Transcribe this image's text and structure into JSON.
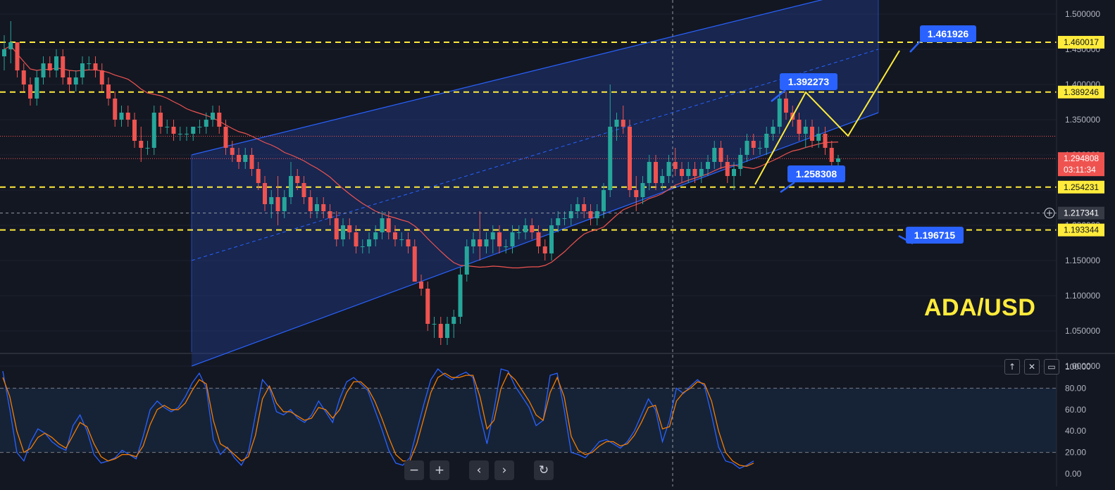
{
  "symbol": "ADA/USD",
  "colors": {
    "background": "#131722",
    "bull": "#26a69a",
    "bear": "#ef5350",
    "channel_line": "#2962ff",
    "channel_fill": "#1e3a8a",
    "level": "#ffeb3b",
    "ma": "#ef5350",
    "stoch_k": "#2962ff",
    "stoch_d": "#f57c00",
    "callout": "#2962ff"
  },
  "price_axis": {
    "ticks": [
      "1.500000",
      "1.450000",
      "1.400000",
      "1.350000",
      "1.300000",
      "1.250000",
      "1.200000",
      "1.150000",
      "1.100000",
      "1.050000",
      "1.000000"
    ],
    "last_price": "1.294808",
    "countdown": "03:11:34",
    "crosshair_price": "1.217341"
  },
  "levels": [
    {
      "value": 1.460017,
      "label": "1.460017"
    },
    {
      "value": 1.389246,
      "label": "1.389246"
    },
    {
      "value": 1.254231,
      "label": "1.254231"
    },
    {
      "value": 1.193344,
      "label": "1.193344"
    }
  ],
  "callouts": [
    {
      "label": "1.461926"
    },
    {
      "label": "1.392273"
    },
    {
      "label": "1.258308"
    },
    {
      "label": "1.196715"
    }
  ],
  "chart_data": {
    "type": "candlestick",
    "title": "ADA/USD",
    "ylim": [
      1.02,
      1.52
    ],
    "candles_ohlc": [
      [
        1.44,
        1.47,
        1.42,
        1.45
      ],
      [
        1.45,
        1.49,
        1.43,
        1.46
      ],
      [
        1.46,
        1.46,
        1.41,
        1.42
      ],
      [
        1.42,
        1.43,
        1.39,
        1.4
      ],
      [
        1.4,
        1.41,
        1.37,
        1.38
      ],
      [
        1.38,
        1.42,
        1.37,
        1.41
      ],
      [
        1.41,
        1.44,
        1.4,
        1.43
      ],
      [
        1.43,
        1.44,
        1.41,
        1.42
      ],
      [
        1.42,
        1.45,
        1.41,
        1.44
      ],
      [
        1.44,
        1.45,
        1.4,
        1.41
      ],
      [
        1.41,
        1.42,
        1.39,
        1.4
      ],
      [
        1.4,
        1.42,
        1.39,
        1.41
      ],
      [
        1.41,
        1.44,
        1.4,
        1.43
      ],
      [
        1.43,
        1.44,
        1.42,
        1.43
      ],
      [
        1.43,
        1.44,
        1.41,
        1.42
      ],
      [
        1.42,
        1.43,
        1.39,
        1.4
      ],
      [
        1.4,
        1.41,
        1.37,
        1.38
      ],
      [
        1.38,
        1.39,
        1.34,
        1.35
      ],
      [
        1.35,
        1.37,
        1.34,
        1.36
      ],
      [
        1.36,
        1.37,
        1.34,
        1.35
      ],
      [
        1.35,
        1.36,
        1.31,
        1.32
      ],
      [
        1.32,
        1.34,
        1.29,
        1.31
      ],
      [
        1.31,
        1.32,
        1.3,
        1.31
      ],
      [
        1.31,
        1.37,
        1.3,
        1.36
      ],
      [
        1.36,
        1.37,
        1.33,
        1.34
      ],
      [
        1.34,
        1.35,
        1.33,
        1.34
      ],
      [
        1.34,
        1.35,
        1.32,
        1.33
      ],
      [
        1.33,
        1.34,
        1.32,
        1.33
      ],
      [
        1.33,
        1.34,
        1.32,
        1.33
      ],
      [
        1.33,
        1.34,
        1.32,
        1.34
      ],
      [
        1.34,
        1.35,
        1.33,
        1.34
      ],
      [
        1.34,
        1.36,
        1.33,
        1.35
      ],
      [
        1.35,
        1.37,
        1.34,
        1.36
      ],
      [
        1.36,
        1.37,
        1.33,
        1.34
      ],
      [
        1.34,
        1.35,
        1.3,
        1.31
      ],
      [
        1.31,
        1.32,
        1.29,
        1.3
      ],
      [
        1.3,
        1.31,
        1.28,
        1.29
      ],
      [
        1.29,
        1.31,
        1.28,
        1.3
      ],
      [
        1.3,
        1.31,
        1.27,
        1.28
      ],
      [
        1.28,
        1.29,
        1.25,
        1.26
      ],
      [
        1.26,
        1.27,
        1.22,
        1.23
      ],
      [
        1.23,
        1.25,
        1.21,
        1.24
      ],
      [
        1.24,
        1.27,
        1.2,
        1.22
      ],
      [
        1.22,
        1.25,
        1.21,
        1.24
      ],
      [
        1.24,
        1.29,
        1.23,
        1.27
      ],
      [
        1.27,
        1.28,
        1.25,
        1.26
      ],
      [
        1.26,
        1.27,
        1.23,
        1.24
      ],
      [
        1.24,
        1.25,
        1.21,
        1.22
      ],
      [
        1.22,
        1.24,
        1.21,
        1.23
      ],
      [
        1.23,
        1.24,
        1.21,
        1.22
      ],
      [
        1.22,
        1.23,
        1.2,
        1.21
      ],
      [
        1.21,
        1.22,
        1.17,
        1.18
      ],
      [
        1.18,
        1.21,
        1.17,
        1.2
      ],
      [
        1.2,
        1.21,
        1.18,
        1.19
      ],
      [
        1.19,
        1.2,
        1.16,
        1.17
      ],
      [
        1.17,
        1.18,
        1.16,
        1.17
      ],
      [
        1.17,
        1.19,
        1.16,
        1.18
      ],
      [
        1.18,
        1.2,
        1.17,
        1.19
      ],
      [
        1.19,
        1.22,
        1.18,
        1.21
      ],
      [
        1.21,
        1.22,
        1.18,
        1.19
      ],
      [
        1.19,
        1.2,
        1.17,
        1.18
      ],
      [
        1.18,
        1.19,
        1.17,
        1.18
      ],
      [
        1.18,
        1.19,
        1.16,
        1.17
      ],
      [
        1.17,
        1.18,
        1.14,
        1.12
      ],
      [
        1.12,
        1.13,
        1.1,
        1.11
      ],
      [
        1.11,
        1.12,
        1.05,
        1.06
      ],
      [
        1.06,
        1.07,
        1.04,
        1.06
      ],
      [
        1.06,
        1.07,
        1.03,
        1.04
      ],
      [
        1.04,
        1.07,
        1.03,
        1.06
      ],
      [
        1.06,
        1.08,
        1.04,
        1.07
      ],
      [
        1.07,
        1.14,
        1.06,
        1.13
      ],
      [
        1.13,
        1.18,
        1.12,
        1.17
      ],
      [
        1.17,
        1.19,
        1.16,
        1.18
      ],
      [
        1.18,
        1.22,
        1.15,
        1.17
      ],
      [
        1.17,
        1.19,
        1.16,
        1.18
      ],
      [
        1.18,
        1.2,
        1.16,
        1.19
      ],
      [
        1.19,
        1.2,
        1.16,
        1.17
      ],
      [
        1.17,
        1.18,
        1.16,
        1.17
      ],
      [
        1.17,
        1.2,
        1.16,
        1.19
      ],
      [
        1.19,
        1.2,
        1.18,
        1.19
      ],
      [
        1.19,
        1.21,
        1.18,
        1.2
      ],
      [
        1.2,
        1.21,
        1.18,
        1.19
      ],
      [
        1.19,
        1.2,
        1.16,
        1.17
      ],
      [
        1.17,
        1.18,
        1.15,
        1.16
      ],
      [
        1.16,
        1.21,
        1.15,
        1.2
      ],
      [
        1.2,
        1.22,
        1.19,
        1.21
      ],
      [
        1.21,
        1.22,
        1.2,
        1.21
      ],
      [
        1.21,
        1.23,
        1.2,
        1.22
      ],
      [
        1.22,
        1.24,
        1.21,
        1.23
      ],
      [
        1.23,
        1.24,
        1.21,
        1.22
      ],
      [
        1.22,
        1.23,
        1.2,
        1.21
      ],
      [
        1.21,
        1.23,
        1.2,
        1.22
      ],
      [
        1.22,
        1.26,
        1.21,
        1.25
      ],
      [
        1.25,
        1.4,
        1.24,
        1.34
      ],
      [
        1.34,
        1.36,
        1.32,
        1.35
      ],
      [
        1.35,
        1.37,
        1.33,
        1.34
      ],
      [
        1.34,
        1.35,
        1.24,
        1.25
      ],
      [
        1.25,
        1.27,
        1.22,
        1.24
      ],
      [
        1.24,
        1.27,
        1.23,
        1.26
      ],
      [
        1.26,
        1.3,
        1.25,
        1.29
      ],
      [
        1.29,
        1.3,
        1.25,
        1.26
      ],
      [
        1.26,
        1.28,
        1.25,
        1.27
      ],
      [
        1.27,
        1.3,
        1.26,
        1.29
      ],
      [
        1.29,
        1.31,
        1.27,
        1.28
      ],
      [
        1.28,
        1.29,
        1.26,
        1.27
      ],
      [
        1.27,
        1.29,
        1.26,
        1.28
      ],
      [
        1.28,
        1.29,
        1.26,
        1.27
      ],
      [
        1.27,
        1.29,
        1.26,
        1.28
      ],
      [
        1.28,
        1.3,
        1.27,
        1.29
      ],
      [
        1.29,
        1.32,
        1.28,
        1.31
      ],
      [
        1.31,
        1.32,
        1.28,
        1.29
      ],
      [
        1.29,
        1.3,
        1.26,
        1.27
      ],
      [
        1.27,
        1.29,
        1.25,
        1.28
      ],
      [
        1.28,
        1.31,
        1.27,
        1.3
      ],
      [
        1.3,
        1.33,
        1.29,
        1.32
      ],
      [
        1.32,
        1.33,
        1.3,
        1.31
      ],
      [
        1.31,
        1.32,
        1.3,
        1.31
      ],
      [
        1.31,
        1.34,
        1.3,
        1.33
      ],
      [
        1.33,
        1.35,
        1.32,
        1.34
      ],
      [
        1.34,
        1.39,
        1.33,
        1.38
      ],
      [
        1.38,
        1.39,
        1.35,
        1.36
      ],
      [
        1.36,
        1.37,
        1.34,
        1.35
      ],
      [
        1.35,
        1.36,
        1.32,
        1.33
      ],
      [
        1.33,
        1.35,
        1.31,
        1.34
      ],
      [
        1.34,
        1.35,
        1.31,
        1.32
      ],
      [
        1.32,
        1.34,
        1.31,
        1.33
      ],
      [
        1.33,
        1.34,
        1.3,
        1.31
      ],
      [
        1.31,
        1.32,
        1.28,
        1.29
      ],
      [
        1.29,
        1.3,
        1.28,
        1.295
      ]
    ],
    "ma_window": 20,
    "channel": {
      "upper_start": 1.3,
      "upper_end": 1.54,
      "lower_start": 1.0,
      "lower_end": 1.36
    },
    "stochastic": {
      "ylim": [
        0,
        100
      ],
      "ticks": [
        "100.00",
        "80.00",
        "60.00",
        "40.00",
        "20.00",
        "0.00"
      ],
      "k": [
        96,
        60,
        20,
        12,
        30,
        42,
        38,
        30,
        25,
        22,
        45,
        55,
        40,
        18,
        10,
        12,
        15,
        22,
        18,
        14,
        35,
        60,
        68,
        62,
        58,
        62,
        72,
        85,
        94,
        80,
        32,
        18,
        25,
        15,
        8,
        20,
        55,
        88,
        80,
        58,
        55,
        60,
        52,
        48,
        55,
        68,
        58,
        48,
        70,
        86,
        90,
        84,
        78,
        60,
        42,
        22,
        10,
        8,
        15,
        40,
        65,
        88,
        98,
        92,
        88,
        92,
        95,
        90,
        55,
        28,
        60,
        98,
        96,
        82,
        72,
        62,
        45,
        50,
        92,
        94,
        60,
        20,
        18,
        15,
        22,
        30,
        32,
        28,
        24,
        30,
        40,
        55,
        70,
        60,
        30,
        50,
        80,
        75,
        82,
        88,
        82,
        55,
        25,
        12,
        10,
        5,
        8,
        12
      ],
      "d": [
        90,
        72,
        40,
        20,
        24,
        34,
        38,
        34,
        28,
        24,
        36,
        48,
        44,
        28,
        16,
        12,
        14,
        18,
        18,
        16,
        26,
        46,
        60,
        64,
        60,
        60,
        66,
        78,
        88,
        84,
        50,
        28,
        24,
        18,
        12,
        16,
        36,
        70,
        82,
        66,
        58,
        58,
        54,
        50,
        52,
        62,
        60,
        52,
        60,
        76,
        86,
        86,
        80,
        68,
        52,
        34,
        18,
        12,
        12,
        28,
        52,
        76,
        90,
        94,
        90,
        90,
        92,
        92,
        72,
        42,
        50,
        80,
        94,
        88,
        78,
        68,
        55,
        50,
        76,
        90,
        72,
        35,
        22,
        18,
        20,
        26,
        30,
        30,
        26,
        28,
        36,
        48,
        62,
        64,
        42,
        44,
        68,
        76,
        80,
        86,
        84,
        68,
        40,
        20,
        12,
        8,
        7,
        10
      ]
    }
  }
}
